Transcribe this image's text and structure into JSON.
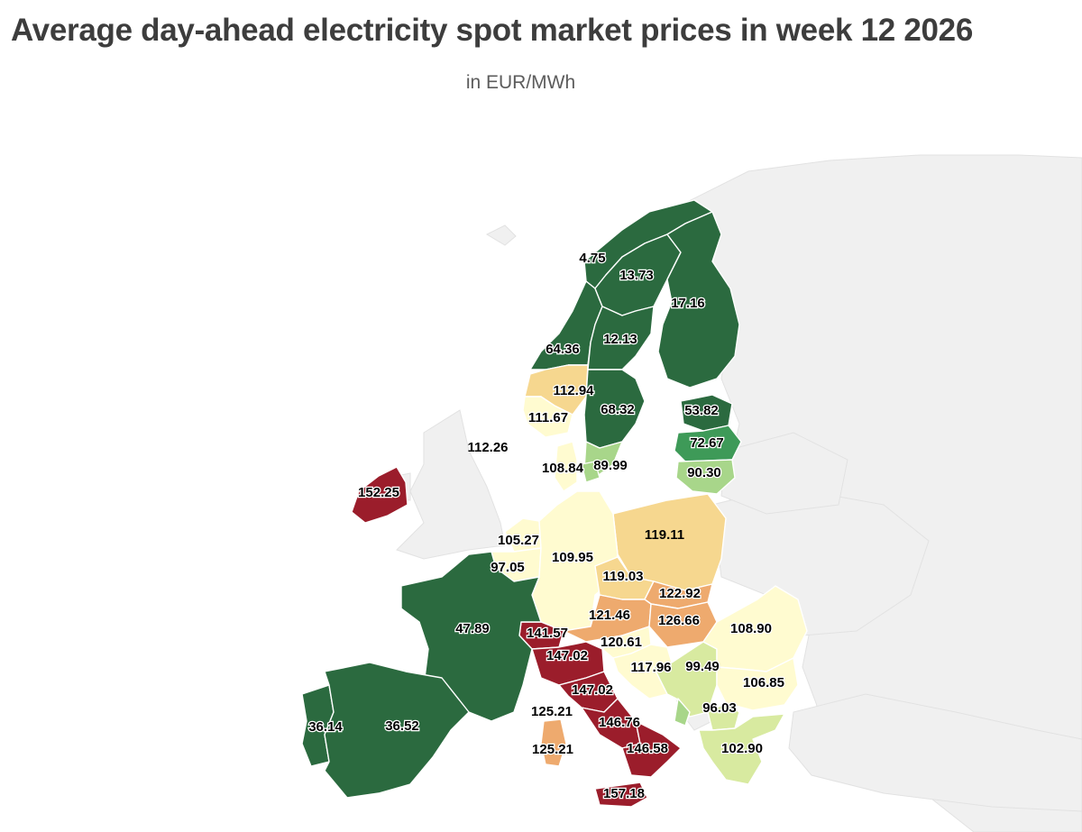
{
  "title": "Average day-ahead electricity spot market prices in week 12 2026",
  "subtitle": "in EUR/MWh",
  "colors": {
    "dark_green": "#2b6a3f",
    "green": "#3e9a58",
    "light_green": "#a8d68a",
    "yellow_green": "#d8eaa0",
    "pale_yellow": "#fffbd0",
    "light_orange": "#f6d78f",
    "orange": "#eeaa6e",
    "dark_red": "#9b1d2b"
  },
  "zones": [
    {
      "id": "no4",
      "value": "4.75"
    },
    {
      "id": "se1",
      "value": "13.73"
    },
    {
      "id": "fi",
      "value": "17.16"
    },
    {
      "id": "no3",
      "value": "64.36"
    },
    {
      "id": "se2",
      "value": "12.13"
    },
    {
      "id": "no1",
      "value": "112.94"
    },
    {
      "id": "no2",
      "value": "111.67"
    },
    {
      "id": "se3",
      "value": "68.32"
    },
    {
      "id": "ee",
      "value": "53.82"
    },
    {
      "id": "lv",
      "value": "72.67"
    },
    {
      "id": "lt",
      "value": "90.30"
    },
    {
      "id": "gb",
      "value": "112.26"
    },
    {
      "id": "dk1",
      "value": "108.84"
    },
    {
      "id": "se4",
      "value": "89.99"
    },
    {
      "id": "ie",
      "value": "152.25"
    },
    {
      "id": "pl",
      "value": "119.11"
    },
    {
      "id": "nl",
      "value": "105.27"
    },
    {
      "id": "de",
      "value": "109.95"
    },
    {
      "id": "be",
      "value": "97.05"
    },
    {
      "id": "cz",
      "value": "119.03"
    },
    {
      "id": "sk",
      "value": "122.92"
    },
    {
      "id": "at",
      "value": "121.46"
    },
    {
      "id": "hu",
      "value": "126.66"
    },
    {
      "id": "fr",
      "value": "47.89"
    },
    {
      "id": "ch",
      "value": "141.57"
    },
    {
      "id": "it_north",
      "value": "147.02"
    },
    {
      "id": "si",
      "value": "120.61"
    },
    {
      "id": "ro",
      "value": "108.90"
    },
    {
      "id": "hr",
      "value": "117.96"
    },
    {
      "id": "rs",
      "value": "99.49"
    },
    {
      "id": "it_centre_north",
      "value": "147.02"
    },
    {
      "id": "bg",
      "value": "106.85"
    },
    {
      "id": "sardinia_north",
      "value": "125.21"
    },
    {
      "id": "mk",
      "value": "96.03"
    },
    {
      "id": "it_centre_south",
      "value": "146.76"
    },
    {
      "id": "pt",
      "value": "36.14"
    },
    {
      "id": "es",
      "value": "36.52"
    },
    {
      "id": "it_south",
      "value": "146.58"
    },
    {
      "id": "sardinia",
      "value": "125.21"
    },
    {
      "id": "gr",
      "value": "102.90"
    },
    {
      "id": "sicily",
      "value": "157.18"
    }
  ]
}
